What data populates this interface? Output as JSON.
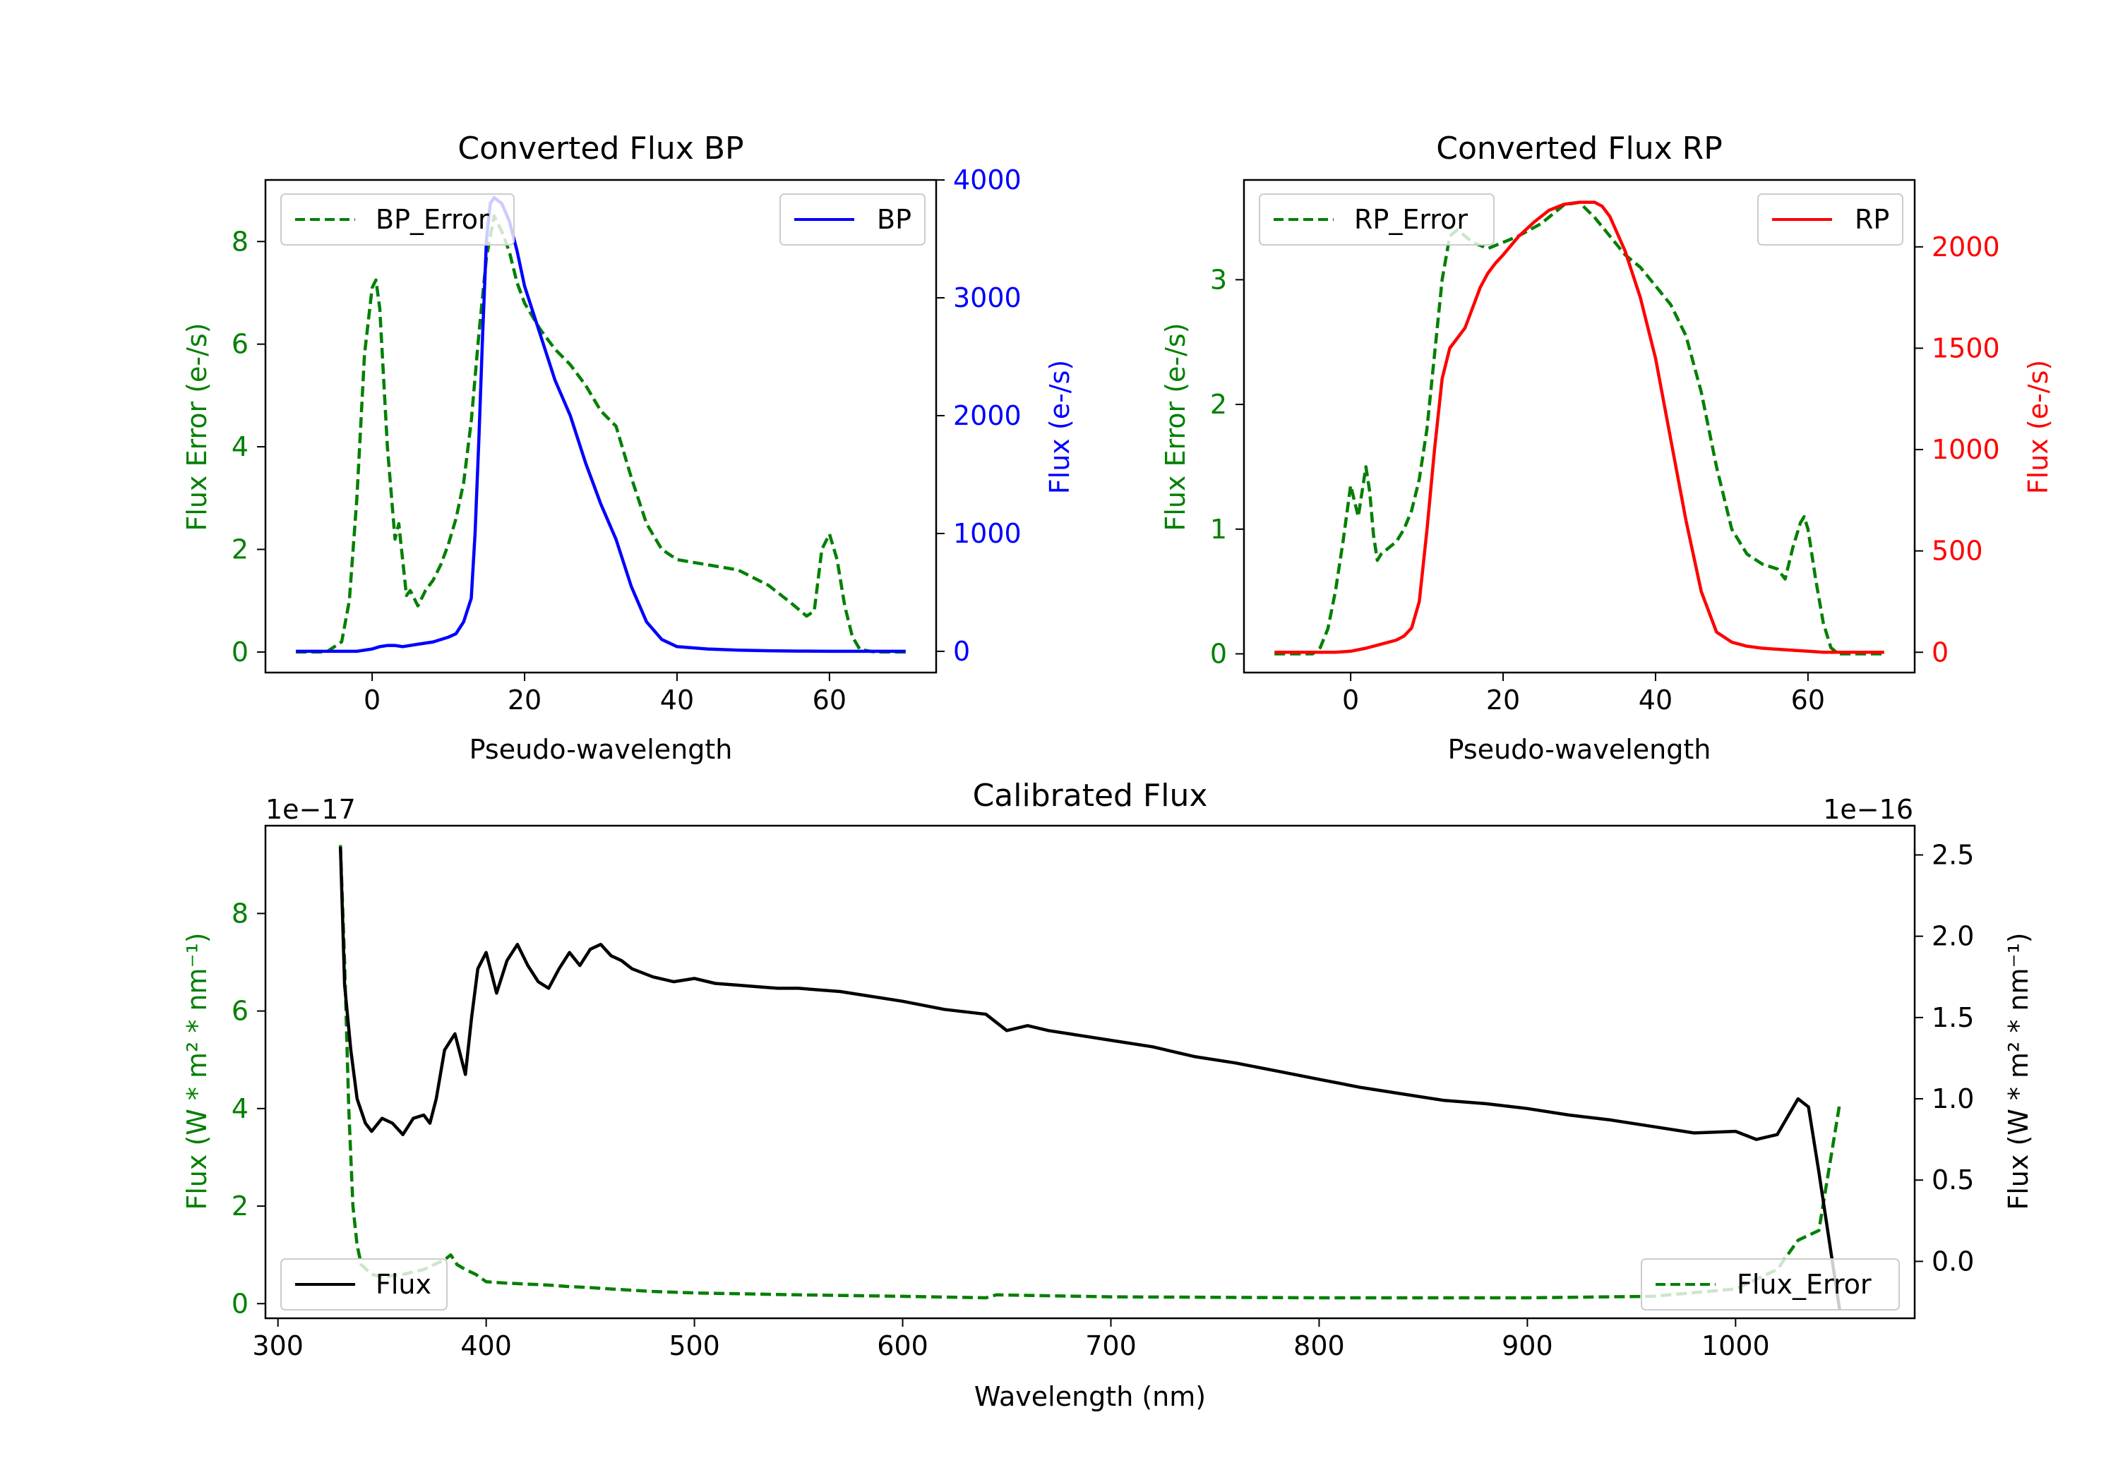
{
  "colors": {
    "green": "#008000",
    "blue": "#0000ff",
    "red": "#ff0000",
    "black": "#000000"
  },
  "chart_data": [
    {
      "id": "bp",
      "type": "line",
      "title": "Converted Flux BP",
      "xlabel": "Pseudo-wavelength",
      "ylabel_left": "Flux Error (e-/s)",
      "ylabel_right": "Flux (e-/s)",
      "xlim": [
        -14,
        74
      ],
      "ylim_left": [
        -0.4,
        9.2
      ],
      "ylim_right": [
        -180,
        4000
      ],
      "xticks": [
        0,
        20,
        40,
        60
      ],
      "yticks_left": [
        0,
        2,
        4,
        6,
        8
      ],
      "yticks_right": [
        0,
        1000,
        2000,
        3000,
        4000
      ],
      "left_series": {
        "name": "BP_Error",
        "style": "dashed",
        "color": "#008000",
        "x": [
          -10,
          -6,
          -4,
          -3,
          -2,
          -1,
          0,
          0.5,
          1,
          2,
          3,
          3.5,
          4,
          4.5,
          5,
          6,
          7,
          8,
          9,
          10,
          11,
          12,
          13,
          14,
          15,
          16,
          17,
          18,
          19,
          20,
          22,
          24,
          26,
          28,
          30,
          32,
          34,
          36,
          38,
          40,
          44,
          48,
          52,
          55,
          57,
          58,
          59,
          60,
          61,
          62,
          63,
          64,
          66,
          70
        ],
        "y": [
          0,
          0,
          0.2,
          1,
          3,
          5.8,
          7.1,
          7.25,
          6.7,
          4,
          2.2,
          2.5,
          1.8,
          1.1,
          1.2,
          0.9,
          1.2,
          1.4,
          1.7,
          2.1,
          2.6,
          3.3,
          4.5,
          6.2,
          7.7,
          8.5,
          8.2,
          7.8,
          7.2,
          6.8,
          6.3,
          5.9,
          5.6,
          5.2,
          4.7,
          4.4,
          3.4,
          2.5,
          2,
          1.8,
          1.7,
          1.6,
          1.3,
          0.95,
          0.7,
          0.8,
          2,
          2.3,
          1.8,
          0.9,
          0.3,
          0.05,
          0,
          0
        ]
      },
      "right_series": {
        "name": "BP",
        "style": "solid",
        "color": "#0000ff",
        "x": [
          -10,
          -5,
          -2,
          0,
          1,
          2,
          3,
          4,
          6,
          8,
          10,
          11,
          12,
          13,
          13.5,
          14,
          14.5,
          15,
          15.5,
          16,
          17,
          18,
          19,
          20,
          22,
          24,
          26,
          28,
          30,
          32,
          34,
          36,
          38,
          40,
          44,
          48,
          52,
          56,
          60,
          64,
          70
        ],
        "y": [
          0,
          0,
          0,
          20,
          40,
          50,
          50,
          40,
          60,
          80,
          120,
          150,
          250,
          450,
          1000,
          1800,
          2700,
          3500,
          3800,
          3850,
          3800,
          3650,
          3400,
          3100,
          2700,
          2300,
          2000,
          1600,
          1250,
          950,
          550,
          250,
          100,
          40,
          20,
          10,
          5,
          2,
          0,
          0,
          0
        ]
      }
    },
    {
      "id": "rp",
      "type": "line",
      "title": "Converted Flux RP",
      "xlabel": "Pseudo-wavelength",
      "ylabel_left": "Flux Error (e-/s)",
      "ylabel_right": "Flux (e-/s)",
      "xlim": [
        -14,
        74
      ],
      "ylim_left": [
        -0.15,
        3.8
      ],
      "ylim_right": [
        -100,
        2330
      ],
      "xticks": [
        0,
        20,
        40,
        60
      ],
      "yticks_left": [
        0,
        1,
        2,
        3
      ],
      "yticks_right": [
        0,
        500,
        1000,
        1500,
        2000
      ],
      "left_series": {
        "name": "RP_Error",
        "style": "dashed",
        "color": "#008000",
        "x": [
          -10,
          -5,
          -4,
          -3,
          -2,
          -1,
          0,
          1,
          1.5,
          2,
          2.5,
          3,
          3.5,
          4,
          5,
          6,
          7,
          8,
          9,
          10,
          11,
          12,
          13,
          14,
          15,
          16,
          18,
          20,
          22,
          25,
          28,
          30,
          32,
          34,
          36,
          38,
          40,
          42,
          44,
          46,
          48,
          50,
          52,
          54,
          56,
          57,
          58,
          59,
          59.5,
          60,
          61,
          62,
          63,
          64,
          66,
          70
        ],
        "y": [
          0,
          0,
          0.05,
          0.2,
          0.5,
          0.9,
          1.35,
          1.1,
          1.3,
          1.5,
          1.3,
          0.95,
          0.75,
          0.8,
          0.85,
          0.9,
          1,
          1.15,
          1.4,
          1.8,
          2.4,
          3,
          3.35,
          3.4,
          3.35,
          3.3,
          3.25,
          3.3,
          3.35,
          3.45,
          3.6,
          3.62,
          3.5,
          3.35,
          3.2,
          3.1,
          2.95,
          2.8,
          2.55,
          2.1,
          1.5,
          1,
          0.8,
          0.72,
          0.68,
          0.6,
          0.85,
          1.05,
          1.1,
          1,
          0.6,
          0.25,
          0.05,
          0,
          0,
          0
        ]
      },
      "right_series": {
        "name": "RP",
        "style": "solid",
        "color": "#ff0000",
        "x": [
          -10,
          -5,
          -2,
          0,
          2,
          4,
          6,
          7,
          8,
          9,
          10,
          11,
          12,
          13,
          14,
          15,
          16,
          17,
          18,
          19,
          20,
          22,
          24,
          26,
          28,
          30,
          32,
          33,
          34,
          36,
          38,
          40,
          42,
          44,
          46,
          48,
          50,
          52,
          54,
          56,
          58,
          60,
          62,
          66,
          70
        ],
        "y": [
          0,
          0,
          0,
          5,
          20,
          40,
          60,
          80,
          120,
          250,
          600,
          1000,
          1350,
          1500,
          1550,
          1600,
          1700,
          1800,
          1870,
          1920,
          1960,
          2050,
          2120,
          2180,
          2210,
          2220,
          2220,
          2200,
          2150,
          1980,
          1750,
          1450,
          1050,
          650,
          300,
          100,
          50,
          30,
          20,
          15,
          10,
          5,
          0,
          0,
          0
        ]
      }
    },
    {
      "id": "calibrated",
      "type": "line",
      "title": "Calibrated Flux",
      "xlabel": "Wavelength (nm)",
      "ylabel_left": "Flux (W * m² * nm⁻¹)",
      "ylabel_right": "Flux (W * m² * nm⁻¹)",
      "offset_left": "1e−17",
      "offset_right": "1e−16",
      "xlim": [
        294,
        1086
      ],
      "ylim_left": [
        -0.3,
        9.8
      ],
      "ylim_right": [
        -0.35,
        2.68
      ],
      "xticks": [
        300,
        400,
        500,
        600,
        700,
        800,
        900,
        1000
      ],
      "yticks_left": [
        0,
        2,
        4,
        6,
        8
      ],
      "yticks_right": [
        0.0,
        0.5,
        1.0,
        1.5,
        2.0,
        2.5
      ],
      "yticklabels_right": [
        "0.0",
        "0.5",
        "1.0",
        "1.5",
        "2.0",
        "2.5"
      ],
      "left_series": {
        "name": "Flux_Error",
        "style": "dashed",
        "color": "#008000",
        "x": [
          330,
          332,
          334,
          336,
          338,
          340,
          345,
          350,
          360,
          370,
          375,
          380,
          383,
          386,
          390,
          395,
          400,
          410,
          420,
          430,
          440,
          450,
          460,
          480,
          500,
          550,
          600,
          640,
          645,
          700,
          800,
          900,
          960,
          1000,
          1020,
          1030,
          1040,
          1045,
          1050
        ],
        "y": [
          9.4,
          7,
          4,
          2,
          1.2,
          0.8,
          0.6,
          0.55,
          0.6,
          0.7,
          0.8,
          0.9,
          1.0,
          0.8,
          0.7,
          0.6,
          0.45,
          0.42,
          0.4,
          0.38,
          0.35,
          0.33,
          0.3,
          0.25,
          0.22,
          0.18,
          0.15,
          0.12,
          0.18,
          0.14,
          0.12,
          0.12,
          0.15,
          0.3,
          0.7,
          1.3,
          1.5,
          2.8,
          4.1
        ]
      },
      "right_series": {
        "name": "Flux",
        "style": "solid",
        "color": "#000000",
        "x": [
          330,
          332,
          335,
          338,
          342,
          345,
          350,
          355,
          360,
          365,
          370,
          373,
          376,
          380,
          385,
          390,
          393,
          396,
          400,
          405,
          410,
          415,
          420,
          425,
          430,
          435,
          440,
          445,
          450,
          455,
          460,
          465,
          470,
          480,
          490,
          500,
          510,
          520,
          530,
          540,
          550,
          560,
          570,
          580,
          600,
          620,
          640,
          650,
          660,
          670,
          680,
          700,
          720,
          740,
          760,
          780,
          800,
          820,
          840,
          860,
          880,
          900,
          920,
          940,
          960,
          980,
          1000,
          1010,
          1020,
          1030,
          1035,
          1040,
          1050
        ],
        "y": [
          2.55,
          1.7,
          1.3,
          1.0,
          0.85,
          0.8,
          0.88,
          0.85,
          0.78,
          0.88,
          0.9,
          0.85,
          1.0,
          1.3,
          1.4,
          1.15,
          1.5,
          1.8,
          1.9,
          1.65,
          1.85,
          1.95,
          1.82,
          1.72,
          1.68,
          1.8,
          1.9,
          1.82,
          1.92,
          1.95,
          1.88,
          1.85,
          1.8,
          1.75,
          1.72,
          1.74,
          1.71,
          1.7,
          1.69,
          1.68,
          1.68,
          1.67,
          1.66,
          1.64,
          1.6,
          1.55,
          1.52,
          1.42,
          1.45,
          1.42,
          1.4,
          1.36,
          1.32,
          1.26,
          1.22,
          1.17,
          1.12,
          1.07,
          1.03,
          0.99,
          0.97,
          0.94,
          0.9,
          0.87,
          0.83,
          0.79,
          0.8,
          0.75,
          0.78,
          1.0,
          0.95,
          0.55,
          -0.3
        ]
      }
    }
  ]
}
